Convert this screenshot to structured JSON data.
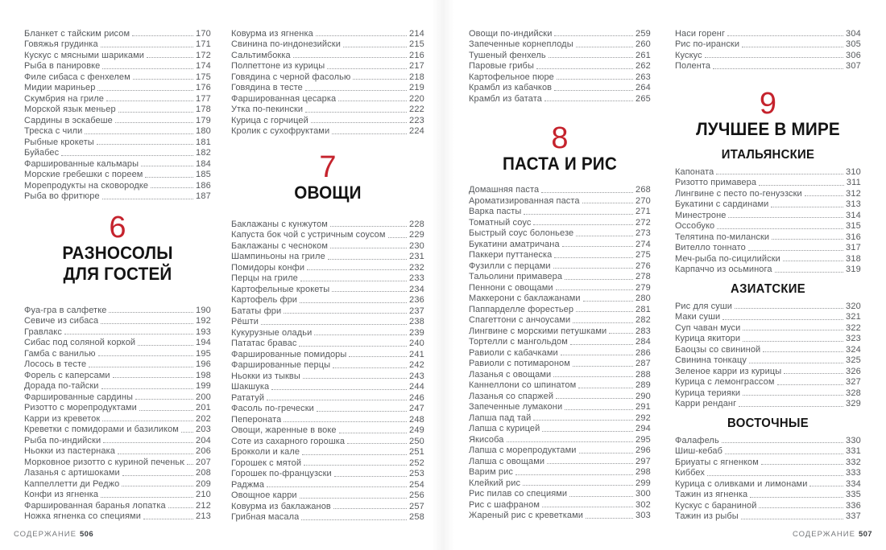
{
  "page": {
    "bg": "#ffffff",
    "accent": "#c5232d"
  },
  "footer": {
    "left_label": "СОДЕРЖАНИЕ",
    "left_page": "506",
    "right_label": "СОДЕРЖАНИЕ",
    "right_page": "507"
  },
  "columns": [
    {
      "blocks": [
        {
          "type": "entries",
          "items": [
            [
              "Бланкет с тайским рисом",
              "170"
            ],
            [
              "Говяжья грудинка",
              "171"
            ],
            [
              "Кускус с мясными шариками",
              "172"
            ],
            [
              "Рыба в панировке",
              "174"
            ],
            [
              "Филе сибаса с фенхелем",
              "175"
            ],
            [
              "Мидии мариньер",
              "176"
            ],
            [
              "Скумбрия на гриле",
              "177"
            ],
            [
              "Морской язык меньер",
              "178"
            ],
            [
              "Сардины в эскабеше",
              "179"
            ],
            [
              "Треска с чили",
              "180"
            ],
            [
              "Рыбные крокеты",
              "181"
            ],
            [
              "Буйабес",
              "182"
            ],
            [
              "Фаршированные кальмары",
              "184"
            ],
            [
              "Морские гребешки с пореем",
              "185"
            ],
            [
              "Морепродукты на сковородке",
              "186"
            ],
            [
              "Рыба во фритюре",
              "187"
            ]
          ]
        },
        {
          "type": "section",
          "number": "6",
          "title_lines": [
            "РАЗНОСОЛЫ",
            "ДЛЯ ГОСТЕЙ"
          ]
        },
        {
          "type": "entries",
          "items": [
            [
              "Фуа-гра в салфетке",
              "190"
            ],
            [
              "Севиче из сибаса",
              "192"
            ],
            [
              "Гравлакс",
              "193"
            ],
            [
              "Сибас под соляной коркой",
              "194"
            ],
            [
              "Гамба с ванилью",
              "195"
            ],
            [
              "Лосось в тесте",
              "196"
            ],
            [
              "Форель с каперсами",
              "198"
            ],
            [
              "Дорада по-тайски",
              "199"
            ],
            [
              "Фаршированные сардины",
              "200"
            ],
            [
              "Ризотто с морепродуктами",
              "201"
            ],
            [
              "Карри из креветок",
              "202"
            ],
            [
              "Креветки с помидорами и базиликом",
              "203"
            ],
            [
              "Рыба по-индийски",
              "204"
            ],
            [
              "Ньокки из пастернака",
              "206"
            ],
            [
              "Морковное ризотто с куриной печенью",
              "207"
            ],
            [
              "Лазанья с артишоками",
              "208"
            ],
            [
              "Каппеллетти ди Реджо",
              "209"
            ],
            [
              "Конфи из ягненка",
              "210"
            ],
            [
              "Фаршированная баранья лопатка",
              "212"
            ],
            [
              "Ножка ягненка со специями",
              "213"
            ]
          ]
        }
      ]
    },
    {
      "blocks": [
        {
          "type": "entries",
          "items": [
            [
              "Ковурма из ягненка",
              "214"
            ],
            [
              "Свинина по-индонезийски",
              "215"
            ],
            [
              "Сальтимбокка",
              "216"
            ],
            [
              "Полпеттоне из курицы",
              "217"
            ],
            [
              "Говядина с черной фасолью",
              "218"
            ],
            [
              "Говядина в тесте",
              "219"
            ],
            [
              "Фаршированная цесарка",
              "220"
            ],
            [
              "Утка по-пекински",
              "222"
            ],
            [
              "Курица с горчицей",
              "223"
            ],
            [
              "Кролик с сухофруктами",
              "224"
            ]
          ]
        },
        {
          "type": "section",
          "number": "7",
          "title_lines": [
            "ОВОЩИ"
          ]
        },
        {
          "type": "entries",
          "items": [
            [
              "Баклажаны с кунжутом",
              "228"
            ],
            [
              "Капуста бок чой с устричным соусом",
              "229"
            ],
            [
              "Баклажаны с чесноком",
              "230"
            ],
            [
              "Шампиньоны на гриле",
              "231"
            ],
            [
              "Помидоры конфи",
              "232"
            ],
            [
              "Перцы на гриле",
              "233"
            ],
            [
              "Картофельные крокеты",
              "234"
            ],
            [
              "Картофель фри",
              "236"
            ],
            [
              "Бататы фри",
              "237"
            ],
            [
              "Рёшти",
              "238"
            ],
            [
              "Кукурузные оладьи",
              "239"
            ],
            [
              "Пататас бравас",
              "240"
            ],
            [
              "Фаршированные помидоры",
              "241"
            ],
            [
              "Фаршированные перцы",
              "242"
            ],
            [
              "Ньокки из тыквы",
              "243"
            ],
            [
              "Шакшука",
              "244"
            ],
            [
              "Рататуй",
              "246"
            ],
            [
              "Фасоль по-гречески",
              "247"
            ],
            [
              "Пепероната",
              "248"
            ],
            [
              "Овощи, жаренные в воке",
              "249"
            ],
            [
              "Соте из сахарного горошка",
              "250"
            ],
            [
              "Брокколи и кале",
              "251"
            ],
            [
              "Горошек с мятой",
              "252"
            ],
            [
              "Горошек по-французски",
              "253"
            ],
            [
              "Раджма",
              "254"
            ],
            [
              "Овощное карри",
              "256"
            ],
            [
              "Ковурма из баклажанов",
              "257"
            ],
            [
              "Грибная масала",
              "258"
            ]
          ]
        }
      ]
    },
    {
      "blocks": [
        {
          "type": "entries",
          "items": [
            [
              "Овощи по-индийски",
              "259"
            ],
            [
              "Запеченные корнеплоды",
              "260"
            ],
            [
              "Тушеный фенхель",
              "261"
            ],
            [
              "Паровые грибы",
              "262"
            ],
            [
              "Картофельное пюре",
              "263"
            ],
            [
              "Крамбл из кабачков",
              "264"
            ],
            [
              "Крамбл из батата",
              "265"
            ]
          ]
        },
        {
          "type": "section",
          "number": "8",
          "title_lines": [
            "ПАСТА И РИС"
          ]
        },
        {
          "type": "entries",
          "items": [
            [
              "Домашняя паста",
              "268"
            ],
            [
              "Ароматизированная паста",
              "270"
            ],
            [
              "Варка пасты",
              "271"
            ],
            [
              "Томатный соус",
              "272"
            ],
            [
              "Быстрый соус болоньезе",
              "273"
            ],
            [
              "Букатини аматричана",
              "274"
            ],
            [
              "Паккери путтанеска",
              "275"
            ],
            [
              "Фузилли с перцами",
              "276"
            ],
            [
              "Тальолини примавера",
              "278"
            ],
            [
              "Пеннони с овощами",
              "279"
            ],
            [
              "Маккерони с баклажанами",
              "280"
            ],
            [
              "Паппарделле форестьер",
              "281"
            ],
            [
              "Спагеттони с анчоусами",
              "282"
            ],
            [
              "Лингвине с морскими петушками",
              "283"
            ],
            [
              "Тортелли с мангольдом",
              "284"
            ],
            [
              "Равиоли с кабачками",
              "286"
            ],
            [
              "Равиоли с потимароном",
              "287"
            ],
            [
              "Лазанья с овощами",
              "288"
            ],
            [
              "Каннеллони со шпинатом",
              "289"
            ],
            [
              "Лазанья со спаржей",
              "290"
            ],
            [
              "Запеченные лумакони",
              "291"
            ],
            [
              "Лапша пад тай",
              "292"
            ],
            [
              "Лапша с курицей",
              "294"
            ],
            [
              "Якисоба",
              "295"
            ],
            [
              "Лапша с морепродуктами",
              "296"
            ],
            [
              "Лапша с овощами",
              "297"
            ],
            [
              "Варим рис",
              "298"
            ],
            [
              "Клейкий рис",
              "299"
            ],
            [
              "Рис пилав со специями",
              "300"
            ],
            [
              "Рис с шафраном",
              "302"
            ],
            [
              "Жареный рис с креветками",
              "303"
            ]
          ]
        }
      ]
    },
    {
      "blocks": [
        {
          "type": "entries",
          "items": [
            [
              "Наси горенг",
              "304"
            ],
            [
              "Рис по-ирански",
              "305"
            ],
            [
              "Кускус",
              "306"
            ],
            [
              "Полента",
              "307"
            ]
          ]
        },
        {
          "type": "section",
          "number": "9",
          "title_lines": [
            "ЛУЧШЕЕ В МИРЕ"
          ]
        },
        {
          "type": "subsection",
          "title": "ИТАЛЬЯНСКИЕ"
        },
        {
          "type": "entries",
          "items": [
            [
              "Капоната",
              "310"
            ],
            [
              "Ризотто примавера",
              "311"
            ],
            [
              "Лингвине с песто по-генуэзски",
              "312"
            ],
            [
              "Букатини с сардинами",
              "313"
            ],
            [
              "Минестроне",
              "314"
            ],
            [
              "Оссобуко",
              "315"
            ],
            [
              "Телятина по-милански",
              "316"
            ],
            [
              "Вителло тоннато",
              "317"
            ],
            [
              "Меч-рыба по-сицилийски",
              "318"
            ],
            [
              "Карпаччо из осьминога",
              "319"
            ]
          ]
        },
        {
          "type": "subsection",
          "title": "АЗИАТСКИЕ"
        },
        {
          "type": "entries",
          "items": [
            [
              "Рис для суши",
              "320"
            ],
            [
              "Маки суши",
              "321"
            ],
            [
              "Суп чаван муси",
              "322"
            ],
            [
              "Курица якитори",
              "323"
            ],
            [
              "Баоцзы со свининой",
              "324"
            ],
            [
              "Свинина тонкацу",
              "325"
            ],
            [
              "Зеленое карри из курицы",
              "326"
            ],
            [
              "Курица с лемонграссом",
              "327"
            ],
            [
              "Курица терияки",
              "328"
            ],
            [
              "Карри ренданг",
              "329"
            ]
          ]
        },
        {
          "type": "subsection",
          "title": "ВОСТОЧНЫЕ"
        },
        {
          "type": "entries",
          "items": [
            [
              "Фалафель",
              "330"
            ],
            [
              "Шиш-кебаб",
              "331"
            ],
            [
              "Бриуаты с ягненком",
              "332"
            ],
            [
              "Киббех",
              "333"
            ],
            [
              "Курица с оливками и лимонами",
              "334"
            ],
            [
              "Тажин из ягненка",
              "335"
            ],
            [
              "Кускус с бараниной",
              "336"
            ],
            [
              "Тажин из рыбы",
              "337"
            ]
          ]
        }
      ]
    }
  ]
}
